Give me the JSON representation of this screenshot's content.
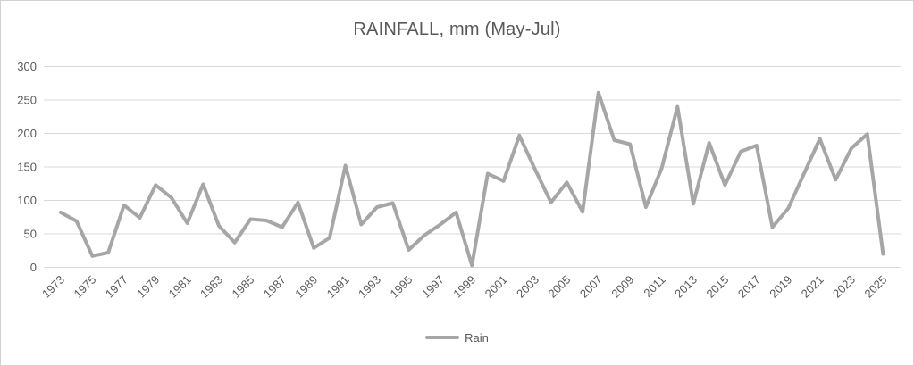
{
  "chart": {
    "title": "RAINFALL, mm (May-Jul)",
    "legend": {
      "label": "Rain",
      "swatch_icon": "line-swatch"
    },
    "colors": {
      "line": "#a6a6a6",
      "gridline": "#d9d9d9",
      "text": "#595959",
      "title_text": "#595959",
      "border": "#d2d2d2",
      "background": "#ffffff"
    }
  },
  "chart_data": {
    "type": "line",
    "title": "RAINFALL, mm (May-Jul)",
    "xlabel": "",
    "ylabel": "",
    "ylim": [
      0,
      300
    ],
    "yticks": [
      0,
      50,
      100,
      150,
      200,
      250,
      300
    ],
    "grid": "horizontal",
    "legend_position": "bottom-center",
    "x": [
      1973,
      1974,
      1975,
      1976,
      1977,
      1978,
      1979,
      1980,
      1981,
      1982,
      1983,
      1984,
      1985,
      1986,
      1987,
      1988,
      1989,
      1990,
      1991,
      1992,
      1993,
      1994,
      1995,
      1996,
      1997,
      1998,
      1999,
      2000,
      2001,
      2002,
      2003,
      2004,
      2005,
      2006,
      2007,
      2008,
      2009,
      2010,
      2011,
      2012,
      2013,
      2014,
      2015,
      2016,
      2017,
      2018,
      2019,
      2020,
      2021,
      2022,
      2023,
      2024,
      2025
    ],
    "xtick_labels": [
      "1973",
      "1975",
      "1977",
      "1979",
      "1981",
      "1983",
      "1985",
      "1987",
      "1989",
      "1991",
      "1993",
      "1995",
      "1997",
      "1999",
      "2001",
      "2003",
      "2005",
      "2007",
      "2009",
      "2011",
      "2013",
      "2015",
      "2017",
      "2019",
      "2021",
      "2023",
      "2025"
    ],
    "series": [
      {
        "name": "Rain",
        "values": [
          82,
          69,
          17,
          22,
          93,
          74,
          123,
          104,
          66,
          124,
          62,
          37,
          72,
          70,
          60,
          97,
          29,
          44,
          152,
          64,
          90,
          96,
          26,
          48,
          64,
          82,
          3,
          140,
          129,
          197,
          146,
          97,
          127,
          83,
          261,
          190,
          184,
          90,
          148,
          240,
          95,
          186,
          123,
          173,
          182,
          60,
          88,
          140,
          192,
          131,
          178,
          199,
          20
        ]
      }
    ]
  }
}
